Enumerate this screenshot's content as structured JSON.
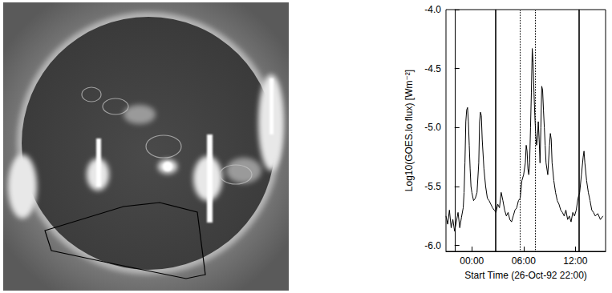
{
  "chart_data": {
    "type": "line",
    "y_label": "Log10(GOES.lo flux) [Wm⁻²]",
    "x_label": "Start Time (26-Oct-92 22:00)",
    "x": [
      -1,
      -0.8,
      -0.6,
      -0.4,
      -0.2,
      0,
      0.2,
      0.4,
      0.6,
      0.8,
      1.0,
      1.1,
      1.2,
      1.3,
      1.4,
      1.5,
      1.6,
      1.7,
      1.8,
      1.9,
      2.0,
      2.2,
      2.4,
      2.6,
      2.8,
      2.9,
      3.0,
      3.1,
      3.2,
      3.4,
      3.6,
      3.8,
      4.0,
      4.2,
      4.4,
      4.6,
      4.8,
      5.0,
      5.2,
      5.4,
      5.6,
      5.8,
      6.0,
      6.2,
      6.4,
      6.6,
      6.8,
      7.0,
      7.2,
      7.4,
      7.6,
      7.8,
      8.0,
      8.2,
      8.3,
      8.4,
      8.5,
      8.6,
      8.7,
      8.8,
      8.9,
      9.0,
      9.1,
      9.2,
      9.3,
      9.4,
      9.5,
      9.6,
      9.7,
      9.8,
      9.9,
      10.0,
      10.1,
      10.2,
      10.3,
      10.4,
      10.5,
      10.6,
      10.8,
      11.0,
      11.1,
      11.2,
      11.3,
      11.5,
      11.7,
      11.9,
      12.1,
      12.3,
      12.5,
      12.7,
      12.9,
      13.1,
      13.3,
      13.5,
      13.7,
      13.9,
      14.1,
      14.3,
      14.5,
      14.7,
      14.9,
      15.0,
      15.1,
      15.3,
      15.5,
      15.7,
      15.9,
      16.1,
      16.3,
      16.6,
      16.9,
      17.2
    ],
    "values": [
      -5.75,
      -5.82,
      -5.7,
      -5.85,
      -5.78,
      -5.88,
      -5.8,
      -5.72,
      -5.85,
      -5.76,
      -5.68,
      -5.55,
      -5.3,
      -4.95,
      -4.85,
      -4.83,
      -4.95,
      -5.15,
      -5.35,
      -5.5,
      -5.55,
      -5.62,
      -5.6,
      -5.55,
      -5.3,
      -4.95,
      -4.87,
      -4.9,
      -5.1,
      -5.35,
      -5.5,
      -5.6,
      -5.62,
      -5.65,
      -5.68,
      -5.7,
      -5.72,
      -5.65,
      -5.68,
      -5.55,
      -5.62,
      -5.7,
      -5.75,
      -5.72,
      -5.78,
      -5.8,
      -5.75,
      -5.7,
      -5.68,
      -5.62,
      -5.6,
      -5.45,
      -5.4,
      -5.3,
      -5.15,
      -5.2,
      -5.35,
      -5.4,
      -5.3,
      -5.0,
      -4.7,
      -4.33,
      -4.45,
      -4.7,
      -4.9,
      -5.05,
      -5.15,
      -5.1,
      -4.95,
      -5.1,
      -5.3,
      -5.0,
      -4.65,
      -4.68,
      -4.85,
      -5.0,
      -5.15,
      -5.3,
      -5.4,
      -5.15,
      -5.05,
      -5.1,
      -5.3,
      -5.45,
      -5.55,
      -5.62,
      -5.65,
      -5.7,
      -5.72,
      -5.75,
      -5.7,
      -5.78,
      -5.75,
      -5.8,
      -5.72,
      -5.75,
      -5.7,
      -5.6,
      -5.55,
      -5.4,
      -5.25,
      -5.2,
      -5.3,
      -5.45,
      -5.55,
      -5.62,
      -5.7,
      -5.72,
      -5.75,
      -5.73,
      -5.78,
      -5.75
    ],
    "color": "#000000",
    "xlim": [
      -1,
      17.5
    ],
    "xticks": [
      {
        "value": 2,
        "label": "00:00"
      },
      {
        "value": 8,
        "label": "06:00"
      },
      {
        "value": 14,
        "label": "12:00"
      }
    ],
    "ylim": [
      -6.05,
      -4.0
    ],
    "yticks": [
      {
        "value": -6,
        "label": "-6.0"
      },
      {
        "value": -5.5,
        "label": "-5.5"
      },
      {
        "value": -5,
        "label": "-5.0"
      },
      {
        "value": -4.5,
        "label": "-4.5"
      },
      {
        "value": -4,
        "label": "-4.0"
      }
    ],
    "vertical_lines": [
      {
        "x": 4.7,
        "line_style": "solid"
      },
      {
        "x": 7.6,
        "line_style": "dotted"
      },
      {
        "x": 9.3,
        "line_style": "dotted"
      },
      {
        "x": 14.4,
        "line_style": "solid"
      }
    ],
    "grid": false
  }
}
